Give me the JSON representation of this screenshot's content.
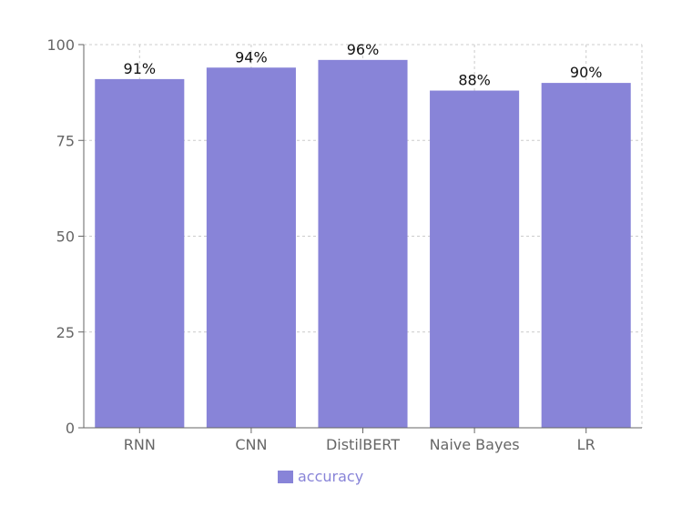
{
  "chart_data": {
    "type": "bar",
    "categories": [
      "RNN",
      "CNN",
      "DistilBERT",
      "Naive Bayes",
      "LR"
    ],
    "series": [
      {
        "name": "accuracy",
        "values": [
          91,
          94,
          96,
          88,
          90
        ],
        "color": "#8884d8"
      }
    ],
    "data_labels": [
      "91%",
      "94%",
      "96%",
      "88%",
      "90%"
    ],
    "y_ticks": [
      0,
      25,
      50,
      75,
      100
    ],
    "ylim": [
      0,
      100
    ],
    "grid": true,
    "legend": "bottom",
    "title": "",
    "xlabel": "",
    "ylabel": ""
  },
  "legend": {
    "label": "accuracy",
    "color": "#8884d8"
  }
}
